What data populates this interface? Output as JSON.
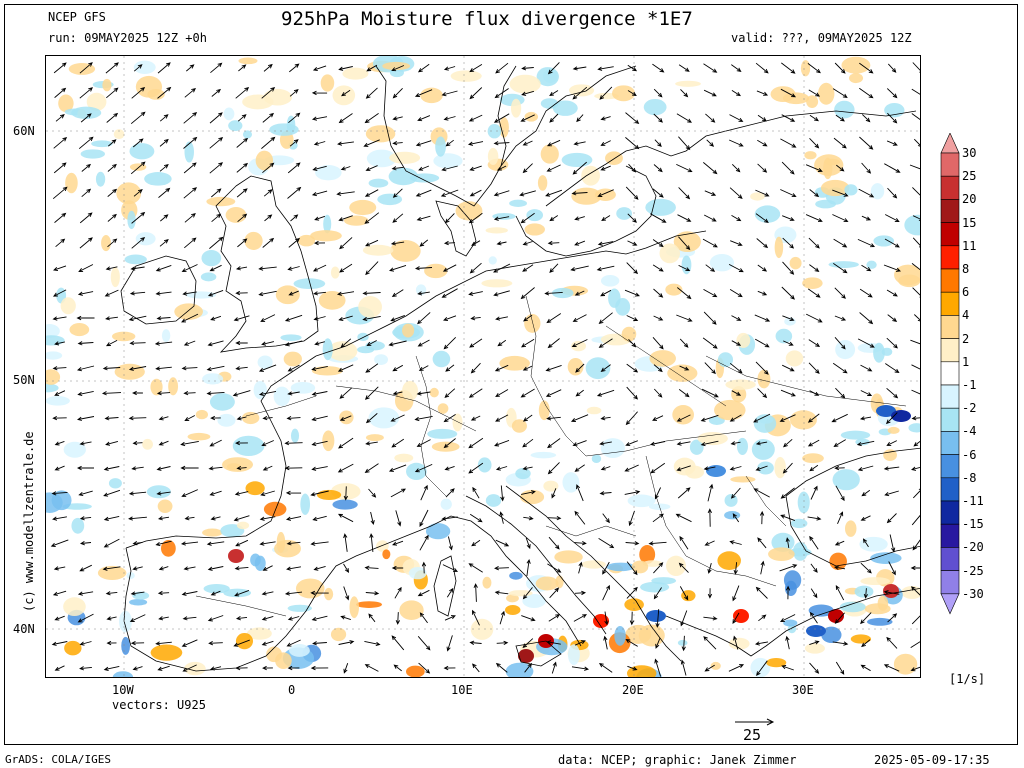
{
  "header": {
    "model": "NCEP GFS",
    "run": "run: 09MAY2025 12Z +0h",
    "title": "925hPa Moisture flux divergence *1E7",
    "valid": "valid: ???, 09MAY2025 12Z"
  },
  "axes": {
    "lat_labels": [
      "60N",
      "50N",
      "40N"
    ],
    "lon_labels": [
      "10W",
      "0",
      "10E",
      "20E",
      "30E"
    ]
  },
  "vectors": {
    "label": "vectors: U925",
    "ref_value": "25"
  },
  "colorbar": {
    "unit": "[1/s]",
    "levels": [
      "30",
      "25",
      "20",
      "15",
      "11",
      "8",
      "6",
      "4",
      "2",
      "1",
      "-1",
      "-2",
      "-4",
      "-6",
      "-8",
      "-11",
      "-15",
      "-20",
      "-25",
      "-30"
    ],
    "colors": [
      "#f0a0a0",
      "#e06868",
      "#c83030",
      "#a01818",
      "#c00000",
      "#ff2000",
      "#ff7800",
      "#ffa800",
      "#ffd890",
      "#fff0c8",
      "#ffffff",
      "#d8f4ff",
      "#a8e4f4",
      "#78bff0",
      "#4890e0",
      "#2060c8",
      "#1028a0",
      "#2818a0",
      "#6050d0",
      "#9080e8",
      "#b0a0f8"
    ]
  },
  "watermark": "(c) www.modellzentrale.de",
  "footer": {
    "left": "GrADS: COLA/IGES",
    "center": "data: NCEP; graphic: Janek Zimmer",
    "right": "2025-05-09-17:35"
  }
}
